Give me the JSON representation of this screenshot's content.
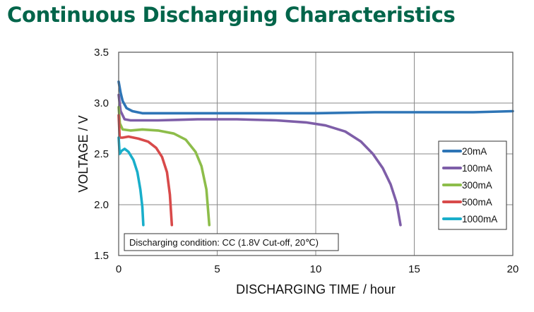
{
  "chart_data": {
    "type": "line",
    "title": "Continuous Discharging Characteristics",
    "xlabel": "DISCHARGING TIME / hour",
    "ylabel": "VOLTAGE / V",
    "xlim": [
      0,
      20
    ],
    "ylim": [
      1.5,
      3.5
    ],
    "x_ticks": [
      "0",
      "5",
      "10",
      "15",
      "20"
    ],
    "y_ticks": [
      "1.5",
      "2.0",
      "2.5",
      "3.0",
      "3.5"
    ],
    "grid": true,
    "legend_position": "right",
    "annotation": "Discharging condition: CC (1.8V Cut-off, 20℃)",
    "series": [
      {
        "name": "20mA",
        "color": "#2e75b6",
        "points": [
          [
            0.0,
            3.21
          ],
          [
            0.1,
            3.1
          ],
          [
            0.2,
            3.02
          ],
          [
            0.4,
            2.95
          ],
          [
            0.7,
            2.92
          ],
          [
            1.2,
            2.9
          ],
          [
            3,
            2.9
          ],
          [
            5,
            2.9
          ],
          [
            8,
            2.9
          ],
          [
            10,
            2.9
          ],
          [
            13,
            2.91
          ],
          [
            15,
            2.91
          ],
          [
            18,
            2.91
          ],
          [
            20,
            2.92
          ]
        ]
      },
      {
        "name": "100mA",
        "color": "#7e5ea8",
        "points": [
          [
            0.0,
            3.08
          ],
          [
            0.1,
            2.92
          ],
          [
            0.3,
            2.84
          ],
          [
            0.6,
            2.83
          ],
          [
            2,
            2.83
          ],
          [
            4,
            2.84
          ],
          [
            6,
            2.84
          ],
          [
            8,
            2.83
          ],
          [
            9.5,
            2.81
          ],
          [
            10.5,
            2.78
          ],
          [
            11.5,
            2.72
          ],
          [
            12.3,
            2.62
          ],
          [
            12.9,
            2.5
          ],
          [
            13.4,
            2.36
          ],
          [
            13.8,
            2.2
          ],
          [
            14.1,
            2.02
          ],
          [
            14.3,
            1.8
          ]
        ]
      },
      {
        "name": "300mA",
        "color": "#8dbd4a",
        "points": [
          [
            0.0,
            2.96
          ],
          [
            0.06,
            2.8
          ],
          [
            0.2,
            2.74
          ],
          [
            0.6,
            2.73
          ],
          [
            1.2,
            2.74
          ],
          [
            2.0,
            2.73
          ],
          [
            2.8,
            2.7
          ],
          [
            3.4,
            2.64
          ],
          [
            3.9,
            2.52
          ],
          [
            4.2,
            2.38
          ],
          [
            4.45,
            2.15
          ],
          [
            4.6,
            1.8
          ]
        ]
      },
      {
        "name": "500mA",
        "color": "#d84a4a",
        "points": [
          [
            0.0,
            2.88
          ],
          [
            0.05,
            2.66
          ],
          [
            0.2,
            2.66
          ],
          [
            0.5,
            2.67
          ],
          [
            1.0,
            2.65
          ],
          [
            1.5,
            2.62
          ],
          [
            1.9,
            2.56
          ],
          [
            2.2,
            2.47
          ],
          [
            2.45,
            2.32
          ],
          [
            2.6,
            2.1
          ],
          [
            2.7,
            1.8
          ]
        ]
      },
      {
        "name": "1000mA",
        "color": "#19aeca",
        "points": [
          [
            0.0,
            2.66
          ],
          [
            0.05,
            2.5
          ],
          [
            0.15,
            2.53
          ],
          [
            0.3,
            2.55
          ],
          [
            0.5,
            2.52
          ],
          [
            0.75,
            2.44
          ],
          [
            0.95,
            2.32
          ],
          [
            1.1,
            2.15
          ],
          [
            1.2,
            1.98
          ],
          [
            1.25,
            1.8
          ]
        ]
      }
    ]
  }
}
